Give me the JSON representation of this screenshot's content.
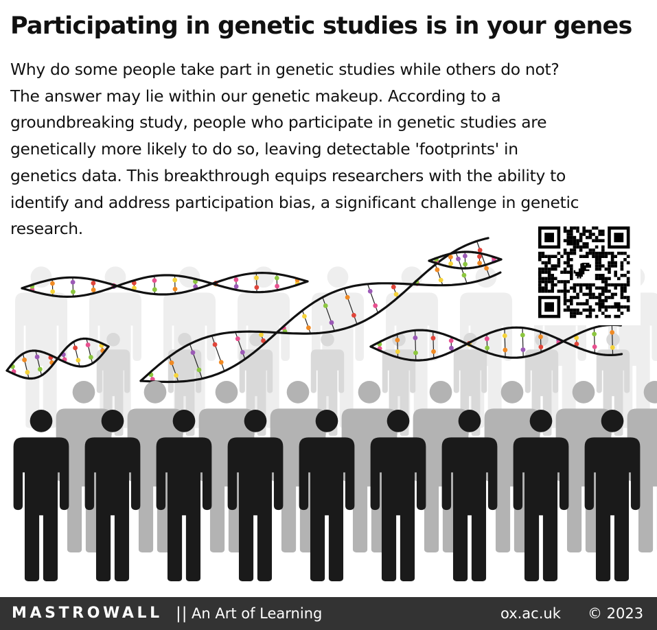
{
  "title": "Participating in genetic studies is in your genes",
  "body_lines": [
    "Why do some people take part in genetic studies while others do not?",
    "The answer may lie within our genetic makeup. According to a",
    "groundbreaking study, people who participate in genetic studies are",
    "genetically more likely to do so, leaving detectable 'footprints' in",
    "genetics data. This breakthrough equips researchers with the ability to",
    "identify and address participation bias, a significant challenge in genetic",
    "research."
  ],
  "footer": {
    "brand": "MASTROWALL",
    "separator": "||",
    "tagline": "An Art of Learning",
    "site": "ox.ac.uk",
    "copyright": "© 2023"
  },
  "colors": {
    "figure_foreground": "#1a1a1a",
    "figure_mid": "#b3b3b3",
    "figure_back": "#d9d9d9",
    "figure_far": "#eeeeee",
    "dna_strand": "#111111",
    "footer_bg": "#333333",
    "base_pair_colors": [
      "#e8508f",
      "#f5d33a",
      "#8cc63f",
      "#f08a24",
      "#9b59b6",
      "#e0453a"
    ]
  },
  "icons": [
    "person-figure-icon",
    "dna-helix-icon",
    "qr-code-icon",
    "dinosaur-icon"
  ]
}
